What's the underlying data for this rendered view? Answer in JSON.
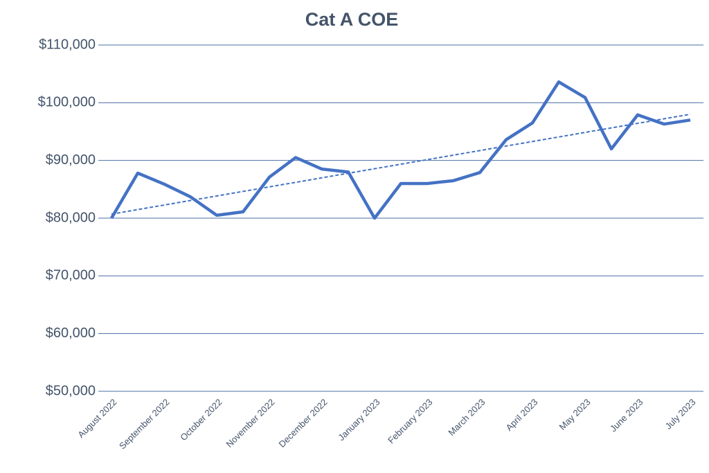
{
  "chart_data": {
    "type": "line",
    "title": "Cat A COE",
    "categories": [
      "August 2022",
      null,
      "September 2022",
      null,
      "October 2022",
      null,
      "November 2022",
      null,
      "December 2022",
      null,
      "January 2023",
      null,
      "February 2023",
      null,
      "March 2023",
      null,
      "April 2023",
      null,
      "May 2023",
      null,
      "June 2023",
      null,
      "July 2023"
    ],
    "series": [
      {
        "color": "#4472c4",
        "values": [
          80000,
          87800,
          85900,
          83700,
          80500,
          81100,
          87100,
          90500,
          88500,
          88000,
          80000,
          86000,
          86000,
          86500,
          87900,
          93600,
          96500,
          103600,
          100900,
          92000,
          97900,
          96300,
          97000
        ]
      }
    ],
    "trendline": {
      "color": "#4472c4",
      "values": [
        80700,
        98000
      ]
    },
    "ylim": [
      50000,
      110000
    ],
    "yticks": [
      {
        "value": 50000,
        "label": "$50,000"
      },
      {
        "value": 60000,
        "label": "$60,000"
      },
      {
        "value": 70000,
        "label": "$70,000"
      },
      {
        "value": 80000,
        "label": "$80,000"
      },
      {
        "value": 90000,
        "label": "$90,000"
      },
      {
        "value": 100000,
        "label": "$100,000"
      },
      {
        "value": 110000,
        "label": "$110,000"
      }
    ],
    "grid": true
  }
}
